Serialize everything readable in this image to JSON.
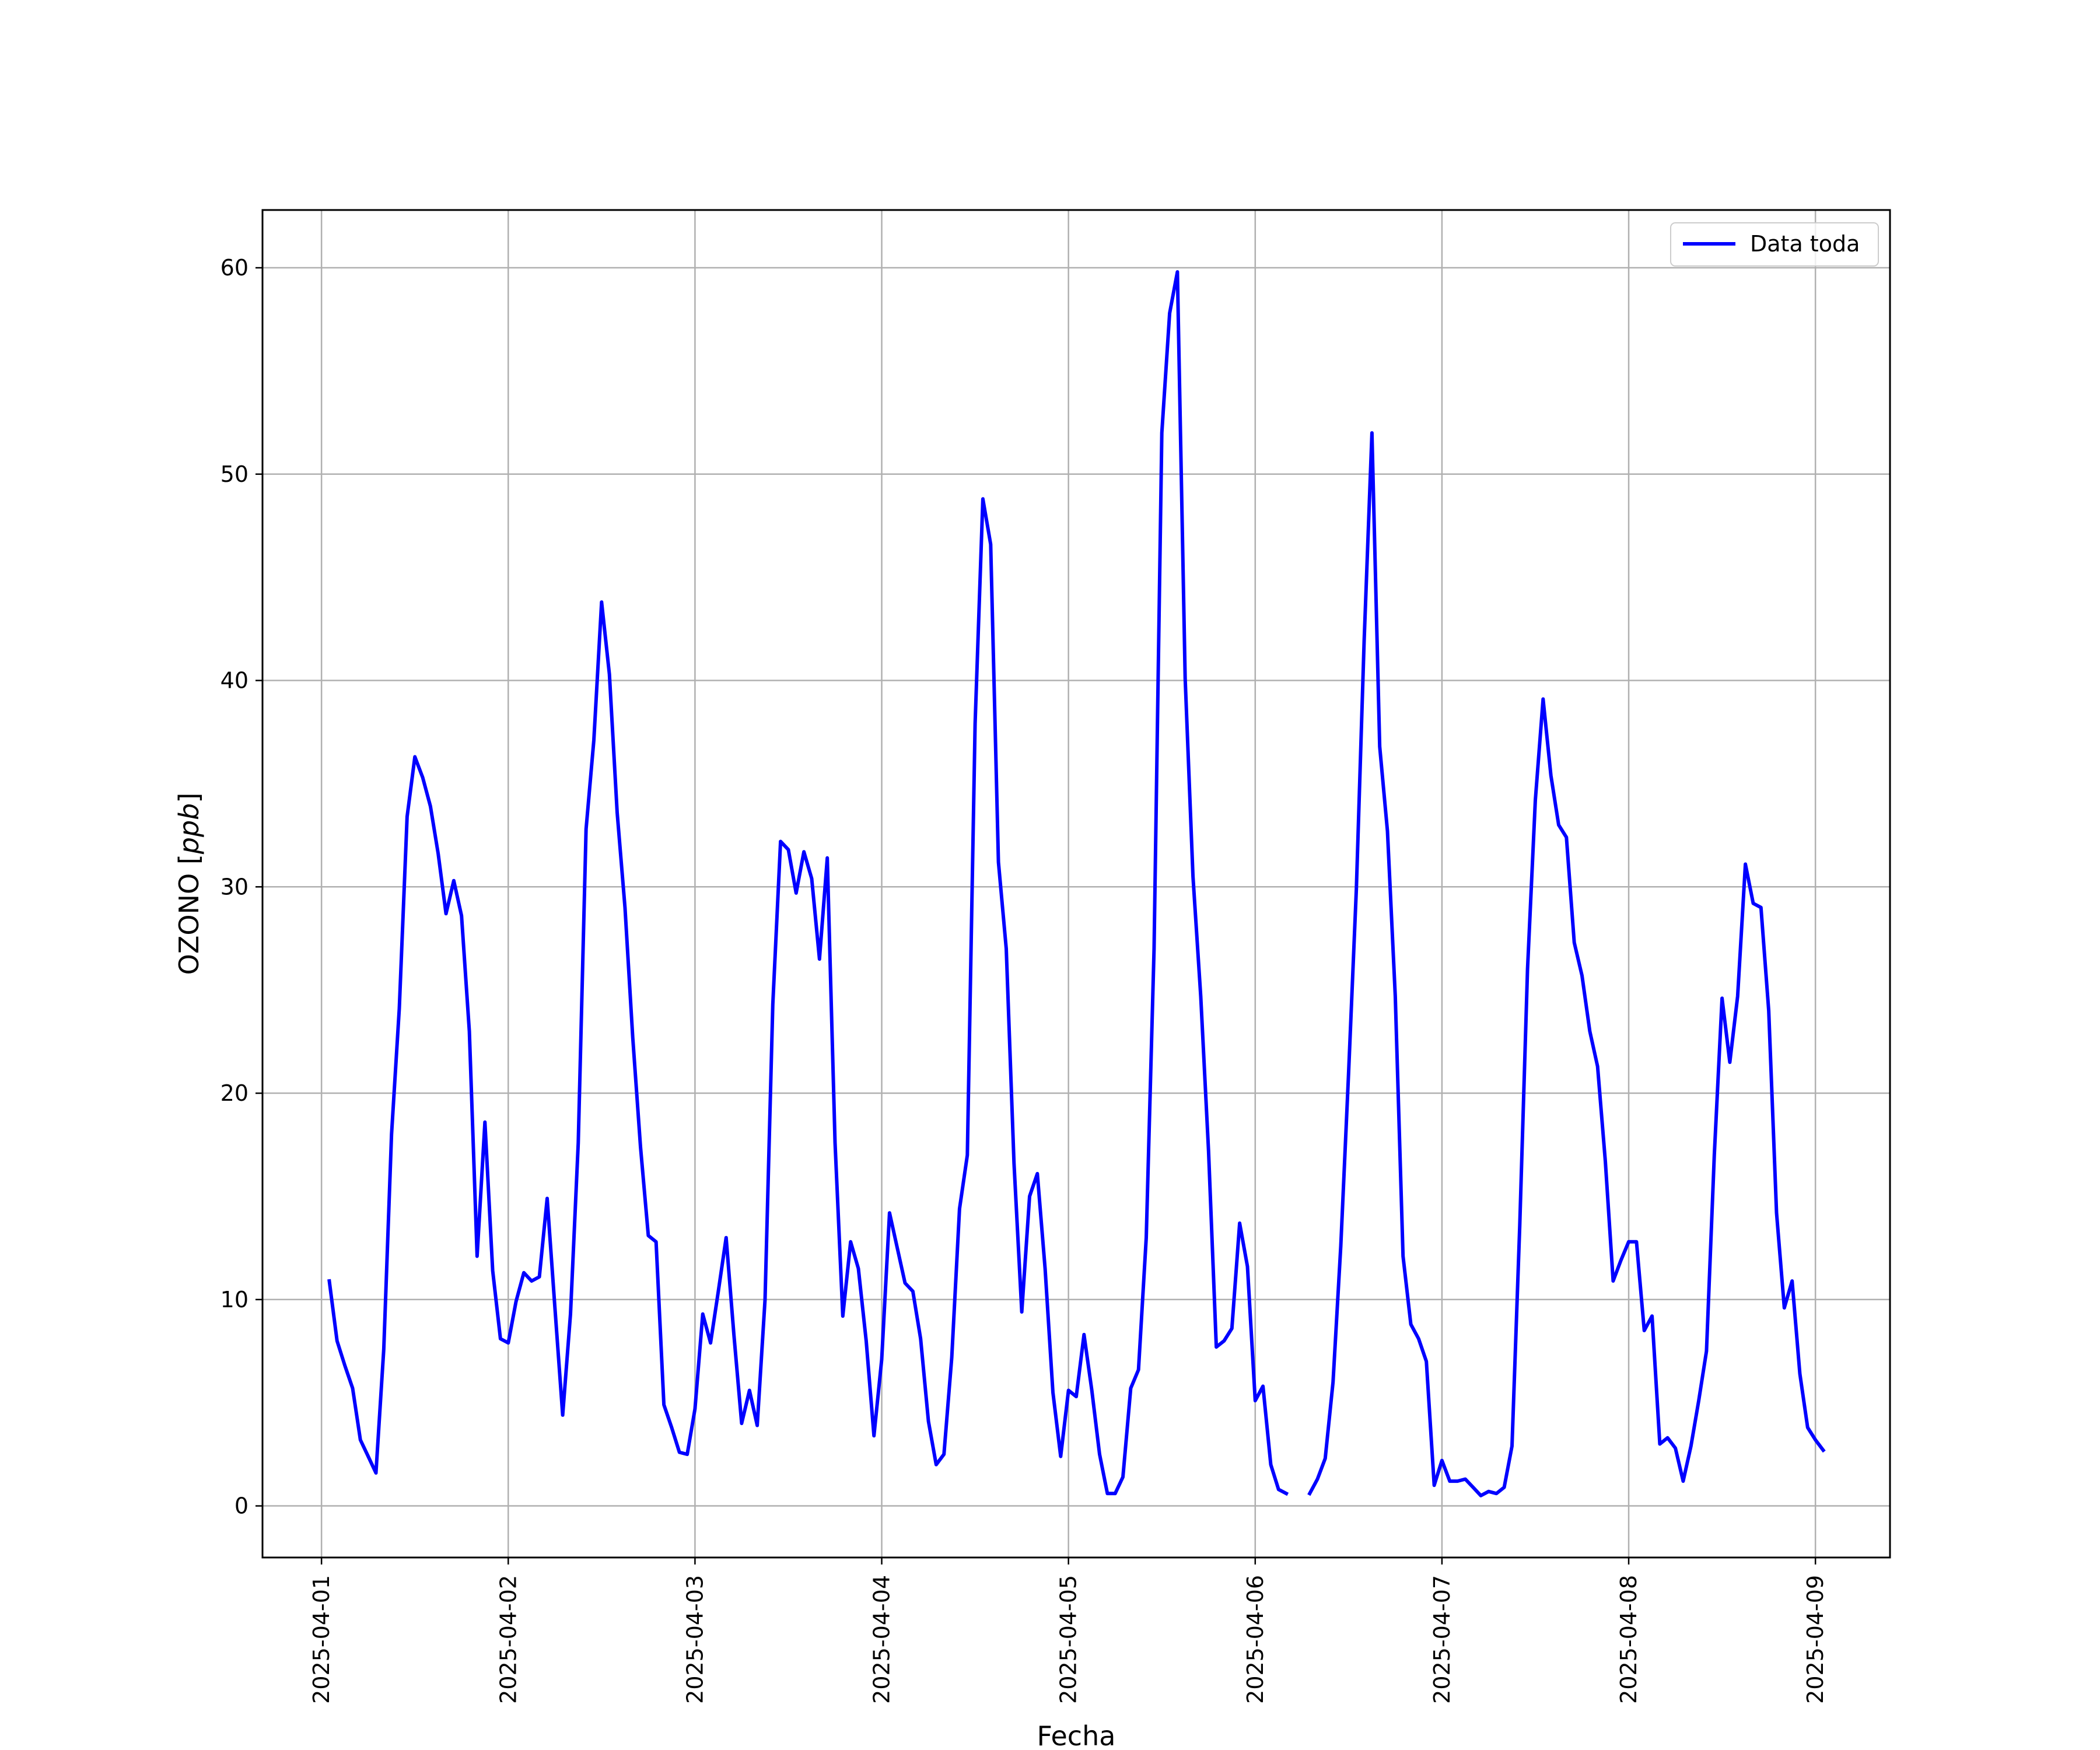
{
  "chart_data": {
    "type": "line",
    "title": "",
    "xlabel": "Fecha",
    "ylabel": "OZONO [ppb]",
    "ylabel_prefix": "OZONO [",
    "ylabel_unit": "ppb",
    "ylabel_suffix": "]",
    "xlim": [
      "2025-03-31T16:25",
      "2025-04-09T09:35"
    ],
    "ylim": [
      -2.5,
      62.8
    ],
    "x_ticks": [
      "2025-04-01",
      "2025-04-02",
      "2025-04-03",
      "2025-04-04",
      "2025-04-05",
      "2025-04-06",
      "2025-04-07",
      "2025-04-08",
      "2025-04-09"
    ],
    "y_ticks": [
      0,
      10,
      20,
      30,
      40,
      50,
      60
    ],
    "grid": true,
    "legend": {
      "position": "top-right",
      "entries": [
        "Data toda"
      ]
    },
    "series": [
      {
        "name": "Data toda",
        "color": "#0000ff",
        "start": "2025-04-01T01:00",
        "interval_hours": 1,
        "values": [
          10.9,
          8.0,
          6.8,
          5.7,
          3.2,
          2.4,
          1.6,
          7.6,
          18.0,
          24.1,
          33.4,
          36.3,
          35.3,
          33.9,
          31.6,
          28.7,
          30.3,
          28.6,
          23.0,
          12.1,
          18.6,
          11.4,
          8.1,
          7.9,
          9.9,
          11.3,
          10.9,
          11.1,
          14.9,
          9.6,
          4.4,
          9.3,
          17.6,
          32.8,
          37.1,
          43.8,
          40.3,
          33.6,
          29.0,
          22.7,
          17.4,
          13.1,
          12.8,
          4.9,
          3.8,
          2.6,
          2.5,
          4.7,
          9.3,
          7.9,
          10.4,
          13.0,
          8.3,
          4.0,
          5.6,
          3.9,
          10.0,
          24.3,
          32.2,
          31.8,
          29.7,
          31.7,
          30.4,
          26.5,
          31.4,
          17.6,
          9.2,
          12.8,
          11.5,
          8.0,
          3.4,
          7.1,
          14.2,
          12.5,
          10.8,
          10.4,
          8.1,
          4.1,
          2.0,
          2.5,
          7.2,
          14.4,
          17.0,
          37.9,
          48.8,
          46.6,
          31.2,
          27.0,
          16.6,
          9.4,
          15.0,
          16.1,
          11.5,
          5.5,
          2.4,
          5.6,
          5.3,
          8.3,
          5.6,
          2.5,
          0.6,
          0.6,
          1.4,
          5.7,
          6.6,
          13.0,
          27.0,
          52.0,
          57.8,
          59.8,
          40.1,
          30.5,
          24.7,
          17.2,
          7.7,
          8.0,
          8.6,
          13.7,
          11.6,
          5.1,
          5.8,
          2.0,
          0.8,
          0.6,
          null,
          null,
          0.6,
          1.3,
          2.3,
          6.0,
          12.6,
          21.0,
          29.9,
          41.9,
          52.0,
          36.8,
          32.7,
          24.7,
          12.1,
          8.8,
          8.1,
          7.0,
          1.0,
          2.2,
          1.2,
          1.2,
          1.3,
          0.9,
          0.5,
          0.7,
          0.6,
          0.9,
          2.9,
          13.6,
          26.0,
          34.2,
          39.1,
          35.4,
          33.0,
          32.4,
          27.3,
          25.7,
          23.0,
          21.3,
          16.7,
          10.9,
          11.9,
          12.8,
          12.8,
          8.5,
          9.2,
          3.0,
          3.3,
          2.8,
          1.2,
          2.9,
          5.1,
          7.5,
          17.0,
          24.6,
          21.5,
          24.7,
          31.1,
          29.2,
          29.0,
          24.0,
          14.2,
          9.6,
          10.9,
          6.4,
          3.8,
          3.2,
          2.7
        ]
      }
    ]
  }
}
